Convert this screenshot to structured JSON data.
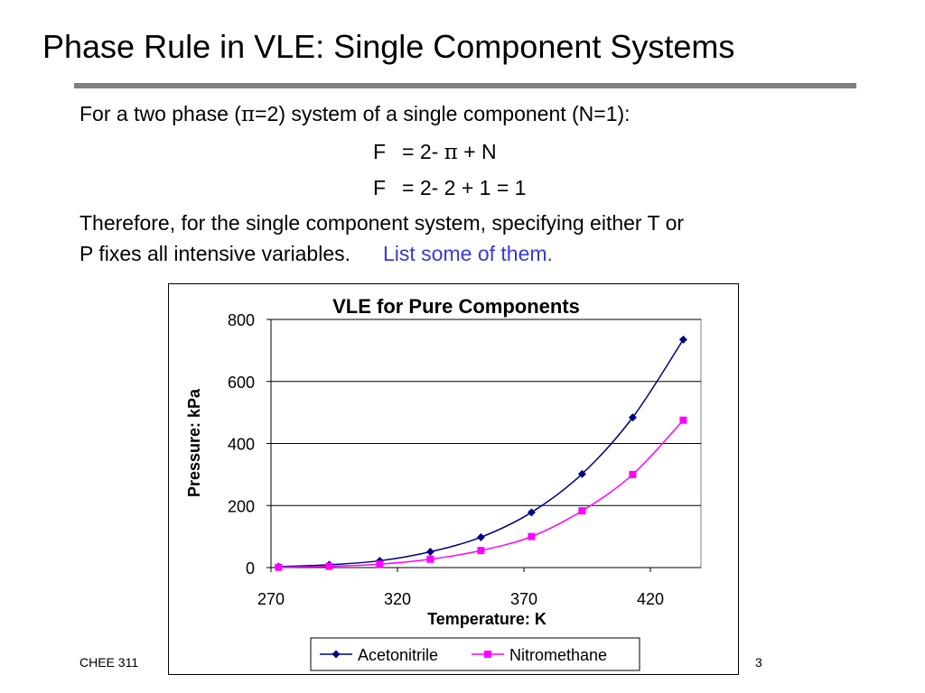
{
  "slide": {
    "title": "Phase Rule in VLE: Single Component Systems",
    "intro_prefix": "For a two phase (",
    "pi_symbol": "π",
    "intro_suffix": "=2) system of a single component (N=1):",
    "eq1_lhs": "F",
    "eq1_rhs_a": "= 2- ",
    "eq1_rhs_b": " + N",
    "eq2_lhs": "F",
    "eq2_rhs": "= 2- 2 + 1 = 1",
    "therefore_line1": "Therefore, for the single component system, specifying either T or",
    "therefore_line2": "P fixes all intensive variables.",
    "link_text": "List some of them.",
    "footer_left": "CHEE 311",
    "page_number": "3",
    "link_color": "#3a3ad6",
    "rule_color": "#808080"
  },
  "chart_data": {
    "type": "line",
    "title": "VLE for Pure Components",
    "xlabel": "Temperature: K",
    "ylabel": "Pressure: kPa",
    "xlim": [
      270,
      440
    ],
    "ylim": [
      0,
      800
    ],
    "xticks": [
      270,
      320,
      370,
      420
    ],
    "yticks": [
      0,
      200,
      400,
      600,
      800
    ],
    "grid": "horizontal",
    "legend_position": "bottom",
    "series": [
      {
        "name": "Acetonitrile",
        "color": "#000080",
        "marker": "diamond",
        "x": [
          273,
          293,
          313,
          333,
          353,
          373,
          393,
          413,
          433
        ],
        "y": [
          3,
          9,
          22,
          51,
          98,
          178,
          302,
          484,
          735
        ]
      },
      {
        "name": "Nitromethane",
        "color": "#ff00ff",
        "marker": "square",
        "x": [
          273,
          293,
          313,
          333,
          353,
          373,
          393,
          413,
          433
        ],
        "y": [
          1,
          4,
          11,
          27,
          55,
          100,
          183,
          300,
          475
        ]
      }
    ]
  }
}
